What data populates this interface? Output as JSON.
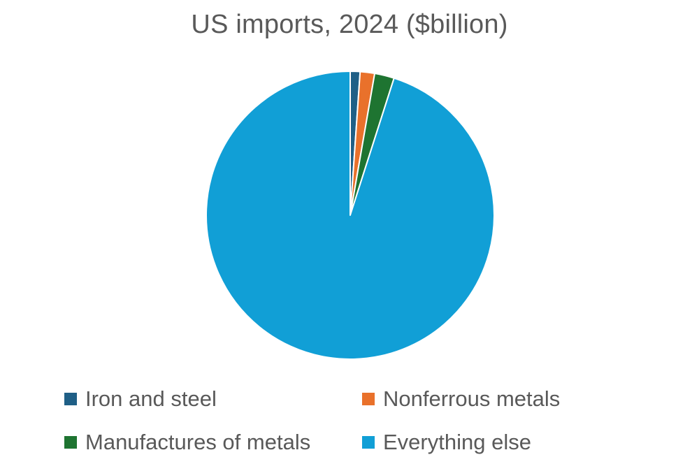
{
  "chart_data": {
    "type": "pie",
    "title": "US imports, 2024 ($billion)",
    "categories": [
      "Iron and steel",
      "Nonferrous metals",
      "Manufactures of metals",
      "Everything else"
    ],
    "values": [
      36,
      53,
      72,
      3107
    ],
    "colors": [
      "#1f5f86",
      "#e9712b",
      "#1e7431",
      "#119fd6"
    ],
    "start_angle_deg": 0,
    "direction": "clockwise",
    "legend": "bottom"
  }
}
